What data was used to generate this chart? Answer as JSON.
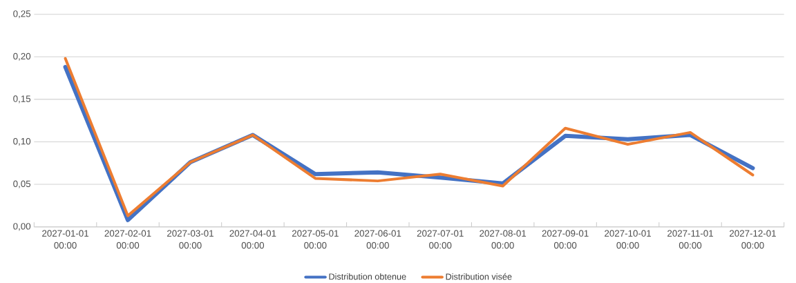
{
  "chart_data": {
    "type": "line",
    "categories": [
      "2027-01-01 00:00",
      "2027-02-01 00:00",
      "2027-03-01 00:00",
      "2027-04-01 00:00",
      "2027-05-01 00:00",
      "2027-06-01 00:00",
      "2027-07-01 00:00",
      "2027-08-01 00:00",
      "2027-09-01 00:00",
      "2027-10-01 00:00",
      "2027-11-01 00:00",
      "2027-12-01 00:00"
    ],
    "series": [
      {
        "name": "Distribution obtenue",
        "color": "#4472c4",
        "values": [
          0.188,
          0.008,
          0.076,
          0.108,
          0.062,
          0.064,
          0.058,
          0.051,
          0.107,
          0.103,
          0.108,
          0.069
        ]
      },
      {
        "name": "Distribution visée",
        "color": "#ed7d31",
        "values": [
          0.198,
          0.013,
          0.076,
          0.108,
          0.057,
          0.054,
          0.062,
          0.048,
          0.116,
          0.097,
          0.111,
          0.061
        ]
      }
    ],
    "ylim": [
      0,
      0.25
    ],
    "yticks": [
      {
        "value": 0,
        "label": "0,00"
      },
      {
        "value": 0.05,
        "label": "0,05"
      },
      {
        "value": 0.1,
        "label": "0,10"
      },
      {
        "value": 0.15,
        "label": "0,15"
      },
      {
        "value": 0.2,
        "label": "0,20"
      },
      {
        "value": 0.25,
        "label": "0,25"
      }
    ],
    "grid": "y",
    "legend": "bottom",
    "marker": "none",
    "line_style": "solid"
  }
}
